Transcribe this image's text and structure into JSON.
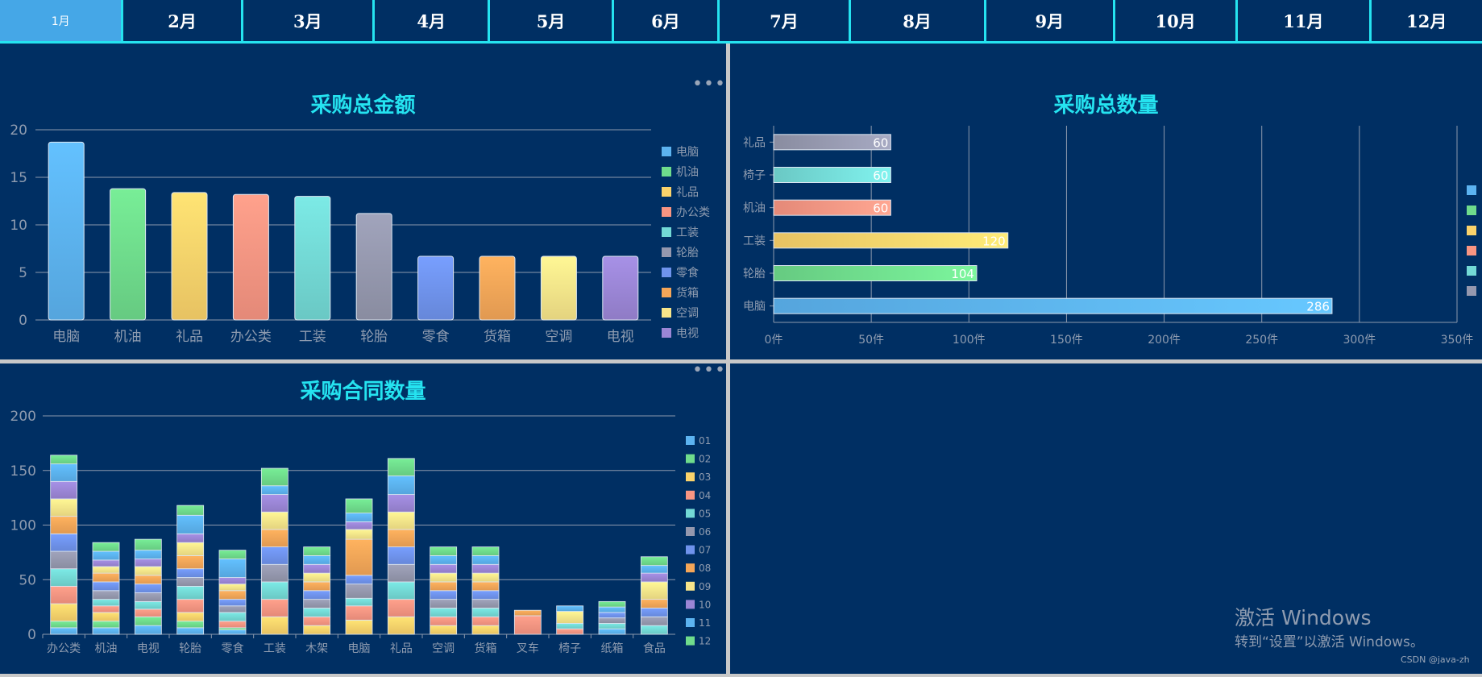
{
  "tabs": [
    "1月",
    "2月",
    "3月",
    "4月",
    "5月",
    "6月",
    "7月",
    "8月",
    "9月",
    "10月",
    "11月",
    "12月"
  ],
  "active_tab": 0,
  "colors": {
    "panel_bg": "#002f63",
    "accent": "#25e3f0",
    "axis_text": "#8f9cb0",
    "palette": [
      "#5cb3f0",
      "#6fdc8c",
      "#fbd36b",
      "#f89582",
      "#73d9d5",
      "#9598ae",
      "#6f93ec",
      "#f5a658",
      "#f8e58a",
      "#9b86d6",
      "#5cb3f0",
      "#6fdc8c"
    ]
  },
  "charts": {
    "amount": {
      "title": "采购总金额",
      "menu": "•••",
      "chart_data": {
        "type": "bar",
        "categories": [
          "电脑",
          "机油",
          "礼品",
          "办公类",
          "工装",
          "轮胎",
          "零食",
          "货箱",
          "空调",
          "电视"
        ],
        "values": [
          18.7,
          13.8,
          13.4,
          13.2,
          13.0,
          11.2,
          6.7,
          6.7,
          6.7,
          6.7
        ],
        "ylim": [
          0,
          20
        ],
        "yticks": [
          "0",
          "5",
          "10",
          "15",
          "20"
        ],
        "legend": [
          "电脑",
          "机油",
          "礼品",
          "办公类",
          "工装",
          "轮胎",
          "零食",
          "货箱",
          "空调",
          "电视"
        ]
      }
    },
    "quantity": {
      "title": "采购总数量",
      "chart_data": {
        "type": "bar",
        "orientation": "horizontal",
        "categories": [
          "电脑",
          "轮胎",
          "工装",
          "机油",
          "椅子",
          "礼品"
        ],
        "values": [
          286,
          104,
          120,
          60,
          60,
          60
        ],
        "labels": [
          "286",
          "104",
          "120",
          "60",
          "60",
          "60"
        ],
        "xlim": [
          0,
          350
        ],
        "xticks": [
          "0件",
          "50件",
          "100件",
          "150件",
          "200件",
          "250件",
          "300件",
          "350件"
        ],
        "legend_swatches": 6
      }
    },
    "contracts": {
      "title": "采购合同数量",
      "menu": "•••",
      "chart_data": {
        "type": "bar",
        "stacked": true,
        "categories": [
          "办公类",
          "机油",
          "电视",
          "轮胎",
          "零食",
          "工装",
          "木架",
          "电脑",
          "礼品",
          "空调",
          "货箱",
          "叉车",
          "椅子",
          "纸箱",
          "食品"
        ],
        "series": [
          {
            "name": "01",
            "values": [
              6,
              6,
              8,
              6,
              4,
              0,
              0,
              0,
              0,
              0,
              0,
              0,
              0,
              5,
              0
            ]
          },
          {
            "name": "02",
            "values": [
              6,
              6,
              8,
              6,
              2,
              0,
              0,
              0,
              0,
              0,
              0,
              0,
              0,
              0,
              0
            ]
          },
          {
            "name": "03",
            "values": [
              16,
              8,
              0,
              8,
              0,
              16,
              8,
              13,
              16,
              8,
              8,
              0,
              0,
              0,
              0
            ]
          },
          {
            "name": "04",
            "values": [
              16,
              6,
              7,
              12,
              6,
              16,
              8,
              13,
              16,
              8,
              8,
              17,
              5,
              0,
              0
            ]
          },
          {
            "name": "05",
            "values": [
              16,
              6,
              7,
              12,
              8,
              16,
              8,
              7,
              16,
              8,
              8,
              0,
              5,
              5,
              8
            ]
          },
          {
            "name": "06",
            "values": [
              16,
              8,
              8,
              8,
              6,
              16,
              8,
              13,
              16,
              8,
              8,
              0,
              0,
              5,
              8
            ]
          },
          {
            "name": "07",
            "values": [
              16,
              8,
              8,
              8,
              6,
              16,
              8,
              8,
              16,
              8,
              8,
              0,
              0,
              5,
              8
            ]
          },
          {
            "name": "08",
            "values": [
              16,
              8,
              8,
              12,
              8,
              16,
              8,
              33,
              16,
              8,
              8,
              5,
              0,
              0,
              8
            ]
          },
          {
            "name": "09",
            "values": [
              16,
              6,
              8,
              12,
              6,
              16,
              8,
              9,
              16,
              8,
              8,
              0,
              11,
              0,
              16
            ]
          },
          {
            "name": "10",
            "values": [
              16,
              6,
              7,
              8,
              6,
              16,
              8,
              7,
              16,
              8,
              8,
              0,
              0,
              0,
              8
            ]
          },
          {
            "name": "11",
            "values": [
              16,
              8,
              8,
              17,
              17,
              8,
              8,
              8,
              17,
              8,
              8,
              0,
              5,
              5,
              7
            ]
          },
          {
            "name": "12",
            "values": [
              8,
              8,
              10,
              9,
              8,
              16,
              8,
              13,
              16,
              8,
              8,
              0,
              0,
              5,
              8
            ]
          }
        ],
        "ylim": [
          0,
          200
        ],
        "yticks": [
          "0",
          "50",
          "100",
          "150",
          "200"
        ]
      }
    }
  },
  "watermark": {
    "line1": "激活 Windows",
    "line2": "转到“设置”以激活 Windows。",
    "credit": "CSDN @java-zh"
  }
}
